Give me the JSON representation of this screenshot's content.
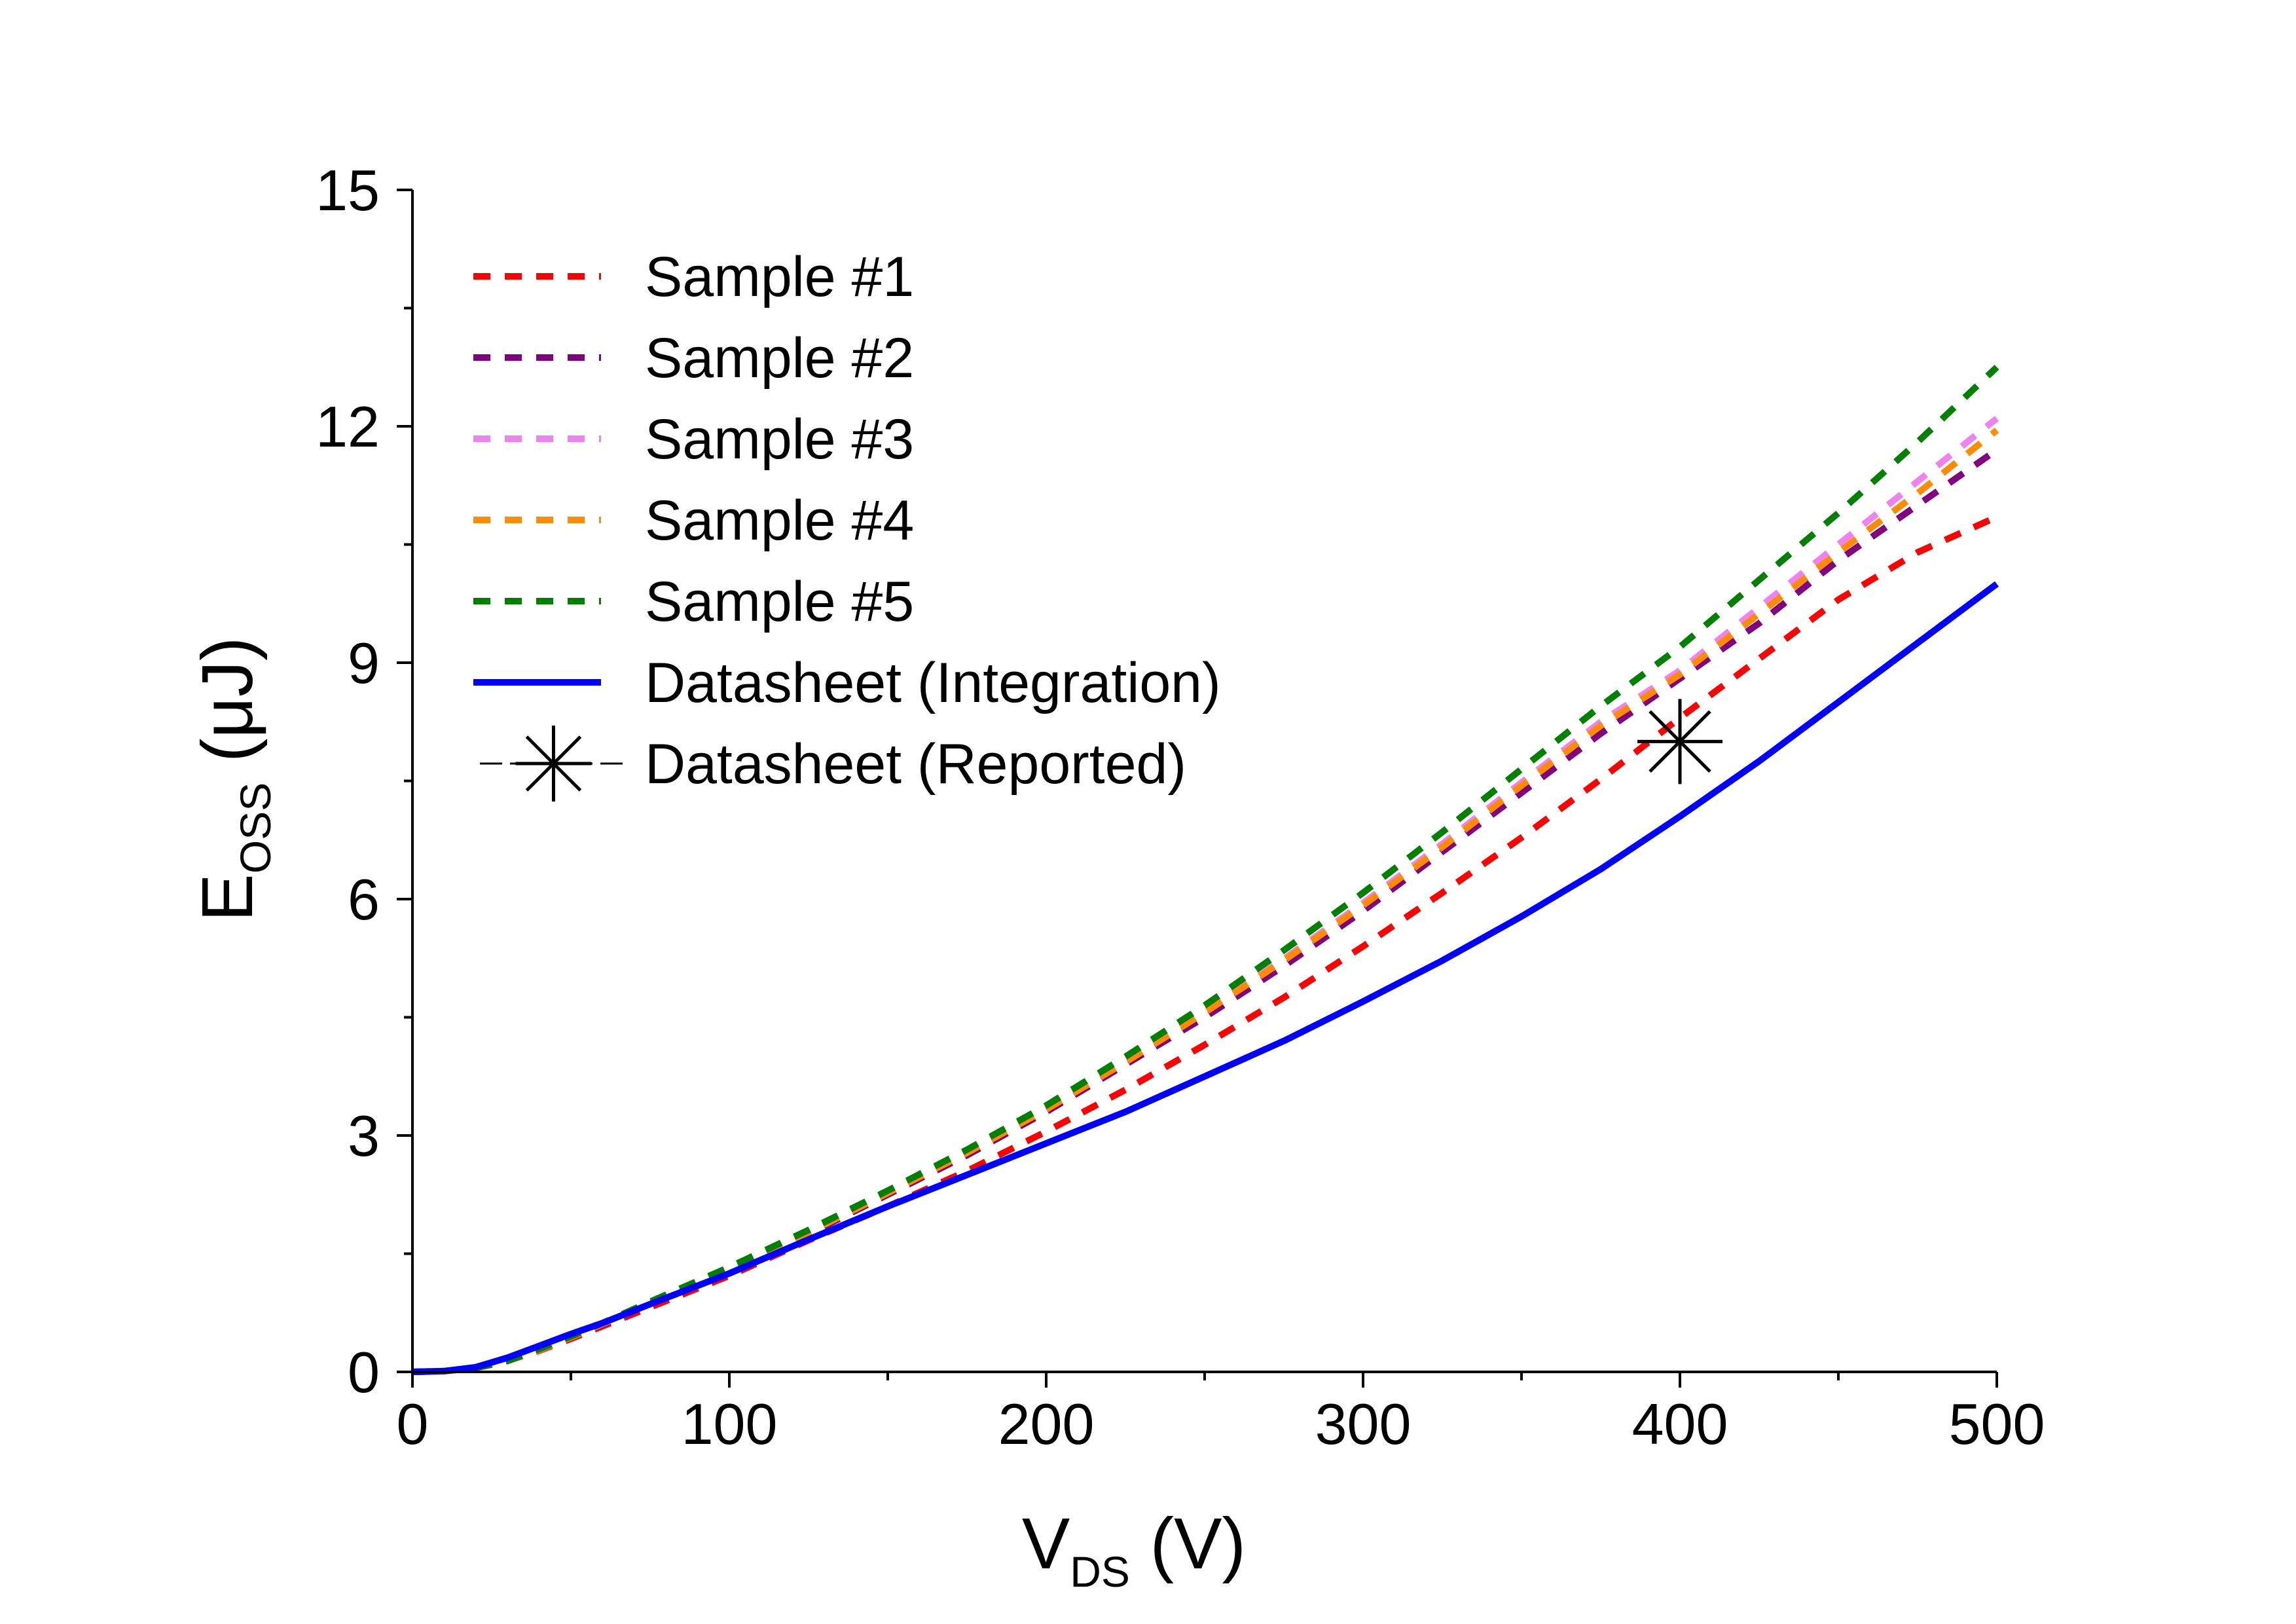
{
  "chart_data": {
    "type": "line",
    "xlabel": {
      "main": "V",
      "sub": "DS",
      "unit": " (V)"
    },
    "ylabel": {
      "main": "E",
      "sub": "OSS",
      "unit": " (μJ)"
    },
    "xlim": [
      0,
      500
    ],
    "ylim": [
      0,
      15
    ],
    "xticks": [
      0,
      100,
      200,
      300,
      400,
      500
    ],
    "yticks": [
      0,
      3,
      6,
      9,
      12,
      15
    ],
    "grid": false,
    "legend_position": "top-left",
    "x": [
      0,
      10,
      20,
      30,
      40,
      50,
      60,
      75,
      100,
      125,
      150,
      175,
      200,
      225,
      250,
      275,
      300,
      325,
      350,
      375,
      400,
      425,
      450,
      475,
      500
    ],
    "series": [
      {
        "name": "Sample #1",
        "color": "#ff0000",
        "style": "dashed",
        "values": [
          0,
          0.01,
          0.05,
          0.14,
          0.27,
          0.42,
          0.58,
          0.82,
          1.22,
          1.67,
          2.1,
          2.55,
          3.05,
          3.58,
          4.15,
          4.75,
          5.4,
          6.08,
          6.78,
          7.52,
          8.3,
          9.05,
          9.8,
          10.4,
          10.85
        ]
      },
      {
        "name": "Sample #2",
        "color": "#800080",
        "style": "dashed",
        "values": [
          0,
          0.01,
          0.05,
          0.14,
          0.28,
          0.44,
          0.6,
          0.86,
          1.3,
          1.75,
          2.25,
          2.75,
          3.3,
          3.9,
          4.5,
          5.15,
          5.85,
          6.6,
          7.35,
          8.1,
          8.8,
          9.5,
          10.3,
          11.0,
          11.7
        ]
      },
      {
        "name": "Sample #3",
        "color": "#ee82ee",
        "style": "dashed",
        "values": [
          0,
          0.01,
          0.05,
          0.14,
          0.28,
          0.44,
          0.61,
          0.87,
          1.31,
          1.77,
          2.27,
          2.79,
          3.35,
          3.95,
          4.58,
          5.24,
          5.95,
          6.7,
          7.48,
          8.25,
          8.9,
          9.7,
          10.5,
          11.3,
          12.1
        ]
      },
      {
        "name": "Sample #4",
        "color": "#ff8c00",
        "style": "dashed",
        "values": [
          0,
          0.01,
          0.05,
          0.14,
          0.28,
          0.44,
          0.61,
          0.87,
          1.31,
          1.77,
          2.27,
          2.78,
          3.33,
          3.93,
          4.56,
          5.22,
          5.92,
          6.66,
          7.44,
          8.2,
          8.85,
          9.62,
          10.4,
          11.15,
          11.95
        ]
      },
      {
        "name": "Sample #5",
        "color": "#008000",
        "style": "dashed",
        "values": [
          0,
          0.01,
          0.05,
          0.14,
          0.29,
          0.45,
          0.62,
          0.89,
          1.33,
          1.8,
          2.3,
          2.82,
          3.38,
          4.0,
          4.65,
          5.35,
          6.08,
          6.85,
          7.65,
          8.45,
          9.2,
          10.05,
          10.9,
          11.8,
          12.75
        ]
      },
      {
        "name": "Datasheet (Integration)",
        "color": "#0000ff",
        "style": "solid",
        "values": [
          0,
          0.01,
          0.06,
          0.18,
          0.33,
          0.48,
          0.62,
          0.86,
          1.25,
          1.68,
          2.1,
          2.5,
          2.9,
          3.3,
          3.75,
          4.2,
          4.7,
          5.22,
          5.78,
          6.38,
          7.05,
          7.75,
          8.5,
          9.25,
          10.0
        ]
      },
      {
        "name": "Datasheet (Reported)",
        "color": "#000000",
        "style": "marker",
        "points": [
          [
            400,
            8.0
          ]
        ]
      }
    ]
  }
}
